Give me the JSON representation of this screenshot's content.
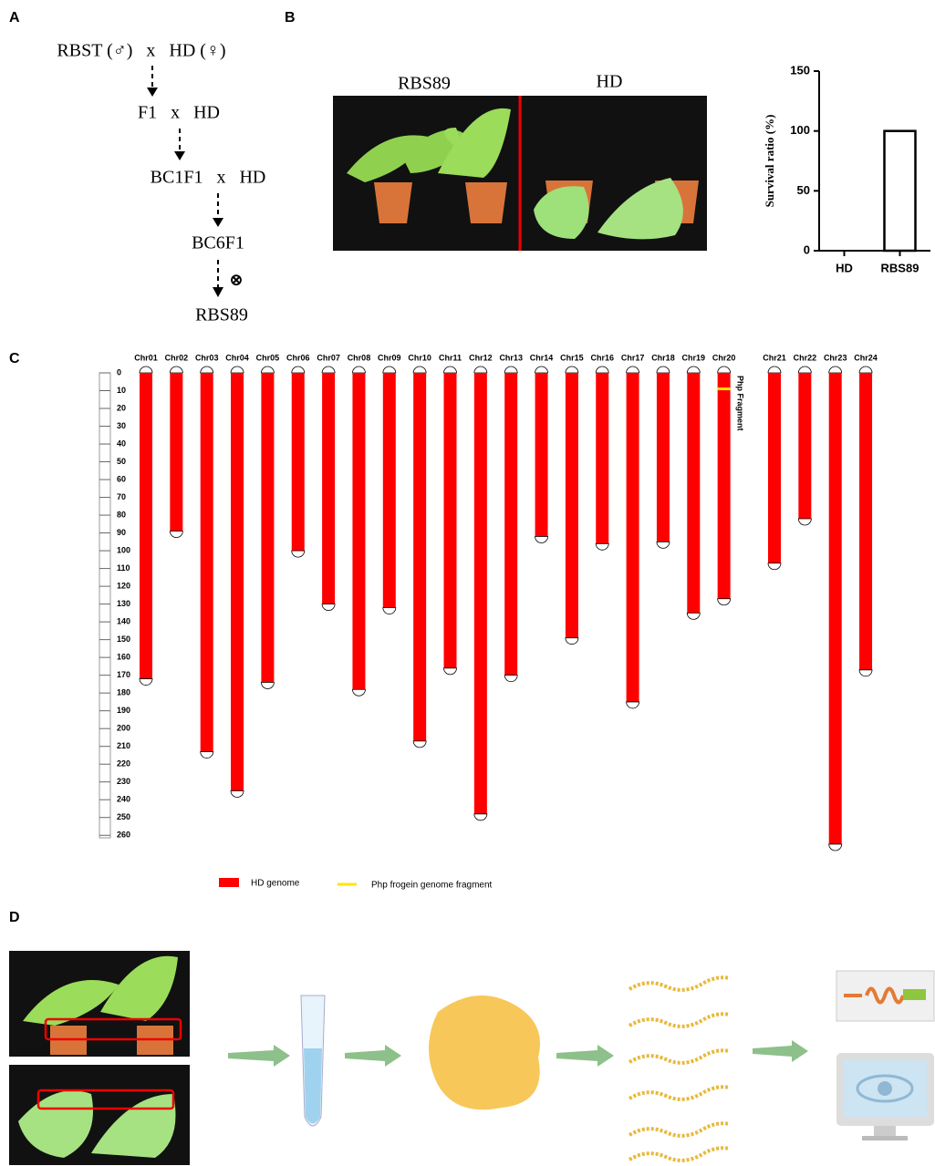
{
  "panels": {
    "a": "A",
    "b": "B",
    "c": "C",
    "d": "D"
  },
  "breeding": {
    "steps": [
      "RBST (♂)   x   HD (♀)",
      "F1   x   HD",
      "BC1F1   x   HD",
      "BC6F1",
      "RBS89"
    ],
    "selfing_symbol": "⊗"
  },
  "photo_labels": [
    "RBS89",
    "HD"
  ],
  "chart_data": [
    {
      "type": "bar",
      "y_label": "Survival ratio (%)",
      "categories": [
        "HD",
        "RBS89"
      ],
      "values": [
        0,
        100
      ],
      "color": "#ffffff",
      "ylim": [
        0,
        150
      ],
      "yticks": [
        0,
        50,
        100,
        150
      ]
    },
    {
      "type": "chromosome",
      "categories": [
        "Chr01",
        "Chr02",
        "Chr03",
        "Chr04",
        "Chr05",
        "Chr06",
        "Chr07",
        "Chr08",
        "Chr09",
        "Chr10",
        "Chr11",
        "Chr12",
        "Chr13",
        "Chr14",
        "Chr15",
        "Chr16",
        "Chr17",
        "Chr18",
        "Chr19",
        "Chr20",
        "Chr21",
        "Chr22",
        "Chr23",
        "Chr24"
      ],
      "series": [
        {
          "name": "HD genome",
          "color": "#ff0000",
          "values": [
            172,
            89,
            213,
            235,
            174,
            100,
            130,
            178,
            132,
            207,
            166,
            248,
            170,
            92,
            149,
            96,
            185,
            95,
            135,
            127,
            107,
            82,
            265,
            167
          ]
        }
      ],
      "fragment": {
        "name": "Php frogein genome fragment",
        "color": "#ffe600",
        "chromosome_index": 19,
        "position": 9,
        "annotation": "Php Fragment"
      },
      "ylim": [
        0,
        265
      ],
      "yticks": [
        0,
        10,
        20,
        30,
        40,
        50,
        60,
        70,
        80,
        90,
        100,
        110,
        120,
        130,
        140,
        150,
        160,
        170,
        180,
        190,
        200,
        210,
        220,
        230,
        240,
        250,
        260
      ]
    }
  ]
}
